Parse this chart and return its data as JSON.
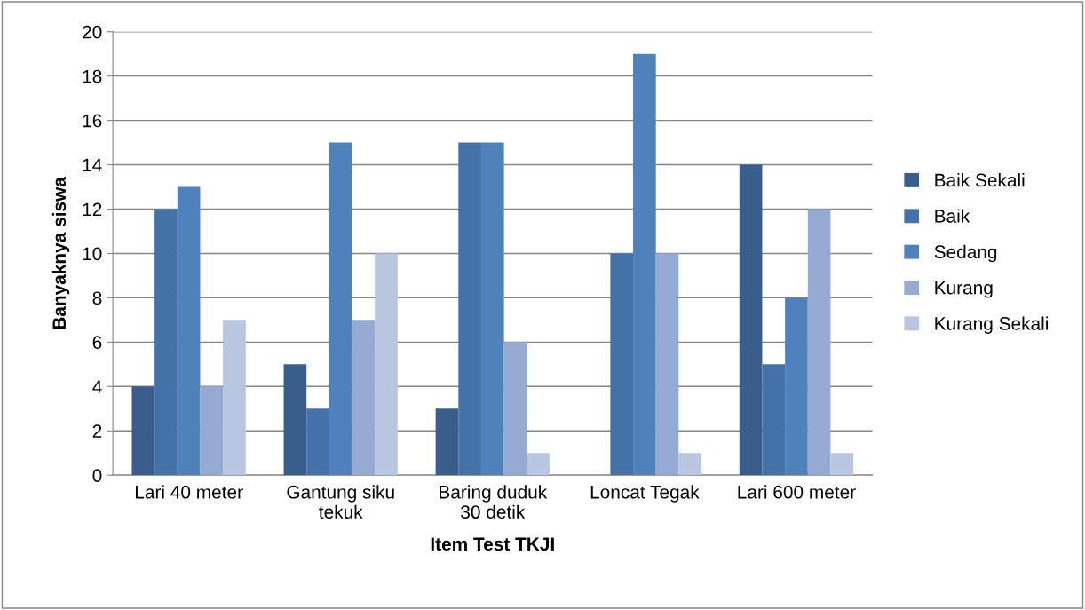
{
  "chart_data": {
    "type": "bar",
    "xlabel": "Item Test TKJI",
    "ylabel": "Banyaknya siswa",
    "categories": [
      "Lari 40 meter",
      "Gantung siku tekuk",
      "Baring duduk 30 detik",
      "Loncat Tegak",
      "Lari 600 meter"
    ],
    "series": [
      {
        "name": "Baik Sekali",
        "color": "#3a5e8c",
        "values": [
          4,
          5,
          3,
          0,
          14
        ]
      },
      {
        "name": "Baik",
        "color": "#4472a8",
        "values": [
          12,
          3,
          15,
          10,
          5
        ]
      },
      {
        "name": "Sedang",
        "color": "#4f81bd",
        "values": [
          13,
          15,
          15,
          19,
          8
        ]
      },
      {
        "name": "Kurang",
        "color": "#95abd3",
        "values": [
          4,
          7,
          6,
          10,
          12
        ]
      },
      {
        "name": "Kurang Sekali",
        "color": "#b9c6e1",
        "values": [
          7,
          10,
          1,
          1,
          1
        ]
      }
    ],
    "ylim": [
      0,
      20
    ],
    "yticks": [
      0,
      2,
      4,
      6,
      8,
      10,
      12,
      14,
      16,
      18,
      20
    ],
    "grid": "y",
    "legend": "right"
  }
}
